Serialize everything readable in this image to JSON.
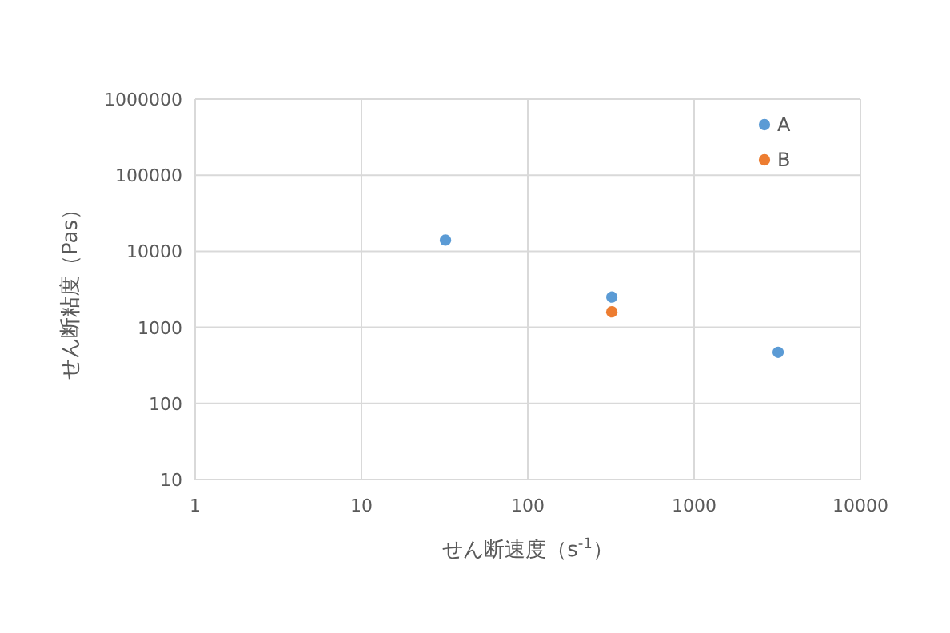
{
  "chart_data": {
    "type": "scatter",
    "xlabel": "せん断速度（s$^{-1}$）",
    "ylabel": "せん断粘度（Pas）",
    "log": "xy",
    "xlim": [
      1,
      10000
    ],
    "xticks": [
      1,
      10,
      100,
      1000,
      10000
    ],
    "ylim": [
      10,
      1000000
    ],
    "yticks": [
      10,
      100,
      1000,
      10000,
      100000,
      1000000
    ],
    "grid": true,
    "legend": "top right",
    "marker": "circle",
    "series": [
      {
        "name": "A",
        "color": "#5b9bd5",
        "x": [
          32,
          320,
          3200
        ],
        "values": [
          14000,
          2500,
          470
        ]
      },
      {
        "name": "B",
        "color": "#ed7d31",
        "x": [
          320
        ],
        "values": [
          1600
        ]
      }
    ]
  }
}
